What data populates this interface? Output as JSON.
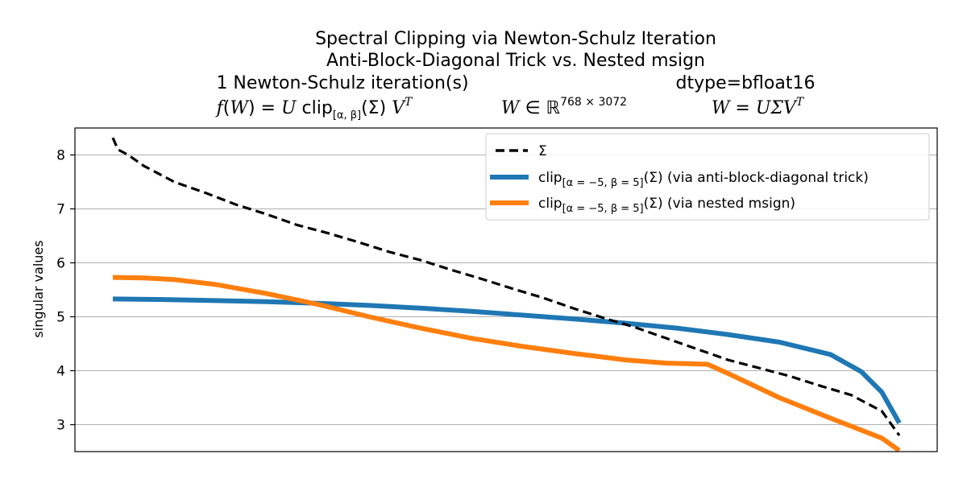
{
  "chart_data": {
    "type": "line",
    "title_lines": [
      "Spectral Clipping via Newton-Schulz Iteration",
      "Anti-Block-Diagonal Trick vs. Nested msign"
    ],
    "info_left": "1 Newton-Schulz iteration(s)",
    "info_right": "dtype=bfloat16",
    "formulas": {
      "f_prefix": "f",
      "f_open": "(",
      "f_W": "W",
      "f_eq": ") = ",
      "f_U": "U",
      "f_clip": " clip",
      "f_interval": "[α, β]",
      "f_sigma": "(Σ) ",
      "f_V": "V",
      "f_T": "T",
      "shape_W": "W",
      "shape_in": " ∈ ℝ",
      "shape_dims": "768 × 3072",
      "svd_lhs": "W",
      "svd_eq": " = ",
      "svd_rhs": "UΣV",
      "svd_T": "T"
    },
    "xlabel": "",
    "ylabel": "singular values",
    "xlim": [
      0,
      767
    ],
    "ylim": [
      2.5,
      8.5
    ],
    "yticks": [
      3,
      4,
      5,
      6,
      7,
      8
    ],
    "grid": "horizontal",
    "legend_position": "top-right",
    "series": [
      {
        "name": "Σ",
        "style": "dashed",
        "color": "#000000",
        "x": [
          0,
          5,
          15,
          30,
          60,
          90,
          120,
          150,
          180,
          210,
          240,
          270,
          300,
          330,
          360,
          390,
          420,
          450,
          480,
          510,
          540,
          570,
          600,
          630,
          660,
          690,
          720,
          750,
          767
        ],
        "y": [
          8.32,
          8.1,
          8.0,
          7.8,
          7.5,
          7.3,
          7.08,
          6.9,
          6.7,
          6.55,
          6.38,
          6.2,
          6.05,
          5.87,
          5.7,
          5.52,
          5.35,
          5.15,
          4.97,
          4.8,
          4.6,
          4.4,
          4.2,
          4.05,
          3.9,
          3.72,
          3.55,
          3.25,
          2.8
        ]
      },
      {
        "name": "clip[α = −5, β = 5](Σ) (via anti-block-diagonal trick)",
        "style": "solid",
        "color": "#1f77b4",
        "x": [
          0,
          50,
          100,
          150,
          200,
          250,
          300,
          350,
          400,
          450,
          500,
          550,
          600,
          650,
          700,
          730,
          750,
          767
        ],
        "y": [
          5.33,
          5.32,
          5.3,
          5.28,
          5.25,
          5.21,
          5.16,
          5.1,
          5.03,
          4.96,
          4.88,
          4.79,
          4.67,
          4.53,
          4.3,
          3.98,
          3.6,
          3.03
        ]
      },
      {
        "name": "clip[α = −5, β = 5](Σ) (via nested msign)",
        "style": "solid",
        "color": "#ff7f0e",
        "x": [
          0,
          30,
          60,
          100,
          150,
          200,
          250,
          300,
          350,
          400,
          450,
          500,
          540,
          560,
          580,
          600,
          650,
          700,
          750,
          767
        ],
        "y": [
          5.73,
          5.72,
          5.69,
          5.6,
          5.43,
          5.23,
          5.0,
          4.79,
          4.6,
          4.45,
          4.32,
          4.2,
          4.14,
          4.13,
          4.12,
          3.95,
          3.5,
          3.12,
          2.75,
          2.52
        ]
      }
    ],
    "legend": {
      "sigma_label": "Σ",
      "clip_prefix": "clip",
      "clip_interval": "[α = −5, β = 5]",
      "blue_suffix": "(Σ) (via anti-block-diagonal trick)",
      "orange_suffix": "(Σ) (via nested msign)"
    }
  }
}
